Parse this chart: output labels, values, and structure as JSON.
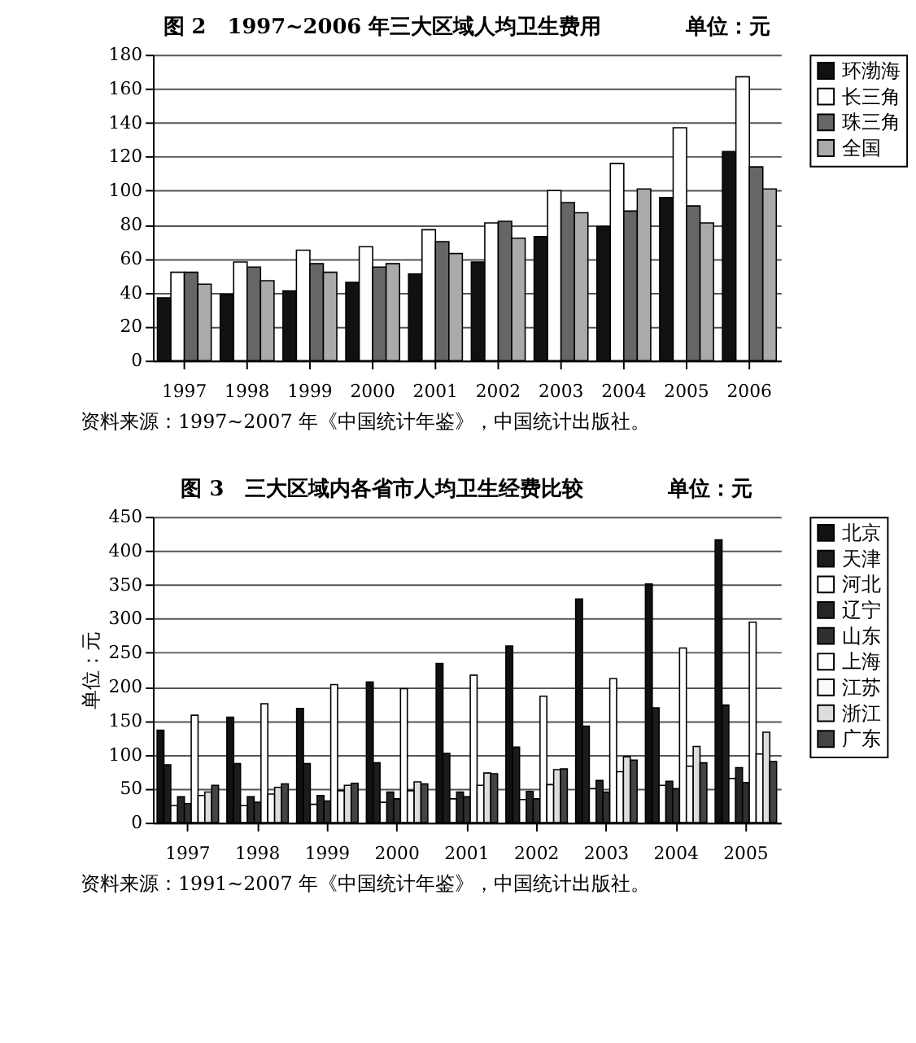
{
  "chart_data": [
    {
      "type": "bar",
      "title": "图 2　1997~2006 年三大区域人均卫生费用　　　　单位：元",
      "categories": [
        "1997",
        "1998",
        "1999",
        "2000",
        "2001",
        "2002",
        "2003",
        "2004",
        "2005",
        "2006"
      ],
      "series": [
        {
          "name": "环渤海",
          "color": "#111111",
          "values": [
            37,
            39,
            41,
            46,
            51,
            58,
            73,
            79,
            96,
            123
          ]
        },
        {
          "name": "长三角",
          "color": "#ffffff",
          "values": [
            52,
            58,
            65,
            67,
            77,
            81,
            100,
            116,
            137,
            167
          ]
        },
        {
          "name": "珠三角",
          "color": "#666666",
          "values": [
            52,
            55,
            57,
            55,
            70,
            82,
            93,
            88,
            91,
            114
          ]
        },
        {
          "name": "全国",
          "color": "#aaaaaa",
          "values": [
            45,
            47,
            52,
            57,
            63,
            72,
            87,
            101,
            81,
            101
          ]
        }
      ],
      "ylim": [
        0,
        180
      ],
      "yticks": [
        0,
        20,
        40,
        60,
        80,
        100,
        120,
        140,
        160,
        180
      ],
      "grid": "y",
      "legend": "right",
      "annotations": [
        "资料来源：1997~2007 年《中国统计年鉴》，中国统计出版社。"
      ]
    },
    {
      "type": "bar",
      "title": "图 3　三大区域内各省市人均卫生经费比较　　　　单位：元",
      "ylabel": "单位：元",
      "categories": [
        "1997",
        "1998",
        "1999",
        "2000",
        "2001",
        "2002",
        "2003",
        "2004",
        "2005"
      ],
      "series": [
        {
          "name": "北京",
          "color": "#111111",
          "values": [
            136,
            155,
            168,
            207,
            234,
            260,
            329,
            351,
            416
          ]
        },
        {
          "name": "天津",
          "color": "#1c1c1c",
          "values": [
            85,
            87,
            87,
            88,
            102,
            111,
            142,
            169,
            173
          ]
        },
        {
          "name": "河北",
          "color": "#ffffff",
          "values": [
            25,
            25,
            27,
            30,
            35,
            34,
            50,
            55,
            65
          ]
        },
        {
          "name": "辽宁",
          "color": "#262626",
          "values": [
            38,
            38,
            40,
            45,
            45,
            46,
            62,
            61,
            81
          ]
        },
        {
          "name": "山东",
          "color": "#303030",
          "values": [
            28,
            30,
            32,
            35,
            38,
            35,
            45,
            50,
            59
          ]
        },
        {
          "name": "上海",
          "color": "#fefefe",
          "values": [
            158,
            175,
            203,
            197,
            217,
            186,
            212,
            257,
            295
          ]
        },
        {
          "name": "江苏",
          "color": "#fafafa",
          "values": [
            40,
            42,
            47,
            47,
            55,
            56,
            75,
            83,
            101
          ]
        },
        {
          "name": "浙江",
          "color": "#dddddd",
          "values": [
            45,
            52,
            55,
            60,
            73,
            78,
            97,
            112,
            133
          ]
        },
        {
          "name": "广东",
          "color": "#444444",
          "values": [
            55,
            57,
            58,
            57,
            72,
            79,
            92,
            88,
            90
          ]
        }
      ],
      "ylim": [
        0,
        450
      ],
      "yticks": [
        0,
        50,
        100,
        150,
        200,
        250,
        300,
        350,
        400,
        450
      ],
      "grid": "y",
      "legend": "right",
      "annotations": [
        "资料来源：1991~2007 年《中国统计年鉴》，中国统计出版社。"
      ]
    }
  ]
}
